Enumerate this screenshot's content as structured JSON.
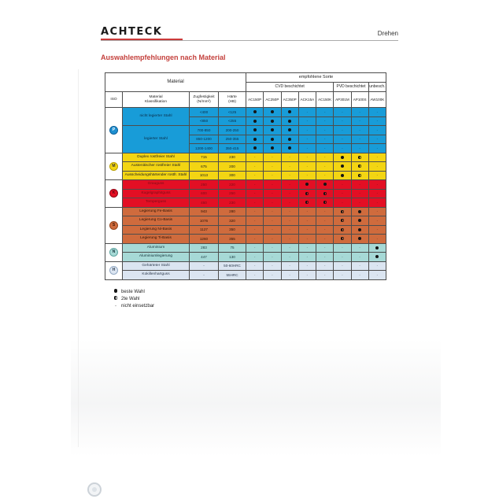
{
  "header": {
    "brand": "ACHTECK",
    "page_label": "Drehen"
  },
  "title": "Auswahlempfehlungen nach Material",
  "table": {
    "material_header": "Material",
    "recommended_header": "empfohlene Sorte",
    "coating_groups": [
      {
        "label": "CVD beschichtet",
        "span": 5
      },
      {
        "label": "PVD beschichtet",
        "span": 2
      },
      {
        "label": "unbesch.",
        "span": 1
      }
    ],
    "sub_headers": [
      "ISO",
      "Material\nKlassifikation",
      "Zugfestigkeit\n(N/mm²)",
      "Härte\n(HB)"
    ],
    "grades": [
      "AC150P",
      "AC250P",
      "AC350P",
      "ACK15A",
      "AC150K",
      "AP301M",
      "AP100S",
      "AW100K"
    ],
    "rating_symbols": {
      "b": "filled-circle-best-choice",
      "s": "half-circle-second-choice",
      "-": "dash-not-usable"
    },
    "sections": [
      {
        "iso": "P",
        "row_bg": "#189cd8",
        "row_text": "#0c2c46",
        "badge_bg": "#1e8fd0",
        "badge_border": "#0d629c",
        "badge_text": "#ffffff",
        "groups": [
          {
            "label": "nicht legierter Stahl",
            "rows": [
              {
                "tensile": "<400",
                "hardness": "<125",
                "ratings": [
                  "b",
                  "b",
                  "b",
                  "-",
                  "-",
                  "-",
                  "-",
                  "-"
                ]
              },
              {
                "tensile": "<850",
                "hardness": "<255",
                "ratings": [
                  "b",
                  "b",
                  "b",
                  "-",
                  "-",
                  "-",
                  "-",
                  "-"
                ]
              }
            ]
          },
          {
            "label": "legierter Stahl",
            "rows": [
              {
                "tensile": "700-850",
                "hardness": "200-250",
                "ratings": [
                  "b",
                  "b",
                  "b",
                  "-",
                  "-",
                  "-",
                  "-",
                  "-"
                ]
              },
              {
                "tensile": "850-1200",
                "hardness": "250-355",
                "ratings": [
                  "b",
                  "b",
                  "b",
                  "-",
                  "-",
                  "-",
                  "-",
                  "-"
                ]
              },
              {
                "tensile": "1200-1400",
                "hardness": "350-415",
                "ratings": [
                  "b",
                  "b",
                  "b",
                  "-",
                  "-",
                  "-",
                  "-",
                  "-"
                ]
              }
            ]
          }
        ]
      },
      {
        "iso": "M",
        "row_bg": "#f3d513",
        "row_text": "#1d1d1d",
        "badge_bg": "#f3d513",
        "badge_border": "#b89f00",
        "badge_text": "#333333",
        "groups": [
          {
            "label": "Duplex rostfreier Stahl",
            "rows": [
              {
                "tensile": "715",
                "hardness": "230",
                "ratings": [
                  "-",
                  "-",
                  "-",
                  "-",
                  "-",
                  "b",
                  "s",
                  "-"
                ]
              }
            ]
          },
          {
            "label": "Austenitischer rostfreier Stahl",
            "rows": [
              {
                "tensile": "675",
                "hardness": "200",
                "ratings": [
                  "-",
                  "-",
                  "-",
                  "-",
                  "-",
                  "b",
                  "s",
                  "-"
                ]
              }
            ]
          },
          {
            "label": "Ausscheidungshärtender rostfr. Stahl",
            "rows": [
              {
                "tensile": "1013",
                "hardness": "300",
                "ratings": [
                  "-",
                  "-",
                  "-",
                  "-",
                  "-",
                  "b",
                  "s",
                  "-"
                ]
              }
            ]
          }
        ]
      },
      {
        "iso": "K",
        "row_bg": "#e30f24",
        "row_text": "#7c0d18",
        "badge_bg": "#e30f24",
        "badge_border": "#8f0716",
        "badge_text": "#5c0410",
        "groups": [
          {
            "label": "Grauguss",
            "rows": [
              {
                "tensile": "250",
                "hardness": "220",
                "ratings": [
                  "-",
                  "-",
                  "-",
                  "b",
                  "b",
                  "-",
                  "-",
                  "-"
                ]
              }
            ]
          },
          {
            "label": "Kugelgraphitguss",
            "rows": [
              {
                "tensile": "600",
                "hardness": "250",
                "ratings": [
                  "-",
                  "-",
                  "-",
                  "s",
                  "s",
                  "-",
                  "-",
                  "-"
                ]
              }
            ]
          },
          {
            "label": "Temperguss",
            "rows": [
              {
                "tensile": "450",
                "hardness": "230",
                "ratings": [
                  "-",
                  "-",
                  "-",
                  "s",
                  "s",
                  "-",
                  "-",
                  "-"
                ]
              }
            ]
          }
        ]
      },
      {
        "iso": "S",
        "row_bg": "#cf6b3d",
        "row_text": "#2e1305",
        "badge_bg": "#cf6b3d",
        "badge_border": "#93451e",
        "badge_text": "#3a1505",
        "groups": [
          {
            "label": "Legierung Fe-Basis",
            "rows": [
              {
                "tensile": "943",
                "hardness": "280",
                "ratings": [
                  "-",
                  "-",
                  "-",
                  "-",
                  "-",
                  "s",
                  "b",
                  "-"
                ]
              }
            ]
          },
          {
            "label": "Legierung Co-Basis",
            "rows": [
              {
                "tensile": "1076",
                "hardness": "320",
                "ratings": [
                  "-",
                  "-",
                  "-",
                  "-",
                  "-",
                  "s",
                  "b",
                  "-"
                ]
              }
            ]
          },
          {
            "label": "Legierung Ni-Basis",
            "rows": [
              {
                "tensile": "1127",
                "hardness": "350",
                "ratings": [
                  "-",
                  "-",
                  "-",
                  "-",
                  "-",
                  "s",
                  "b",
                  "-"
                ]
              }
            ]
          },
          {
            "label": "Legierung Ti-Basis",
            "rows": [
              {
                "tensile": "1260",
                "hardness": "355",
                "ratings": [
                  "-",
                  "-",
                  "-",
                  "-",
                  "-",
                  "s",
                  "b",
                  "-"
                ]
              }
            ]
          }
        ]
      },
      {
        "iso": "N",
        "row_bg": "#a6d9d6",
        "row_text": "#13333a",
        "badge_bg": "#a6d9d6",
        "badge_border": "#5fa5a1",
        "badge_text": "#13333a",
        "groups": [
          {
            "label": "Aluminium",
            "rows": [
              {
                "tensile": "283",
                "hardness": "75",
                "ratings": [
                  "-",
                  "-",
                  "-",
                  "-",
                  "-",
                  "-",
                  "-",
                  "b"
                ]
              }
            ]
          },
          {
            "label": "Aluminiumlegierung",
            "rows": [
              {
                "tensile": "447",
                "hardness": "130",
                "ratings": [
                  "-",
                  "-",
                  "-",
                  "-",
                  "-",
                  "-",
                  "-",
                  "b"
                ]
              }
            ]
          }
        ]
      },
      {
        "iso": "H",
        "row_bg": "#dbe5f1",
        "row_text": "#2c3a4d",
        "badge_bg": "#dbe5f1",
        "badge_border": "#93a9c4",
        "badge_text": "#2c3a4d",
        "groups": [
          {
            "label": "Gehärteter Stahl",
            "rows": [
              {
                "tensile": "-",
                "hardness": "50-60HRC",
                "ratings": [
                  "-",
                  "-",
                  "-",
                  "-",
                  "-",
                  "-",
                  "-",
                  "-"
                ]
              }
            ]
          },
          {
            "label": "Kokillenhartguss",
            "rows": [
              {
                "tensile": "-",
                "hardness": "55HRC",
                "ratings": [
                  "-",
                  "-",
                  "-",
                  "-",
                  "-",
                  "-",
                  "-",
                  "-"
                ]
              }
            ]
          }
        ]
      }
    ]
  },
  "legend": [
    {
      "symbol": "filled-circle",
      "label": "beste Wahl"
    },
    {
      "symbol": "half-circle",
      "label": "2te Wahl"
    },
    {
      "symbol": "dash",
      "label": "nicht einsetzbar"
    }
  ]
}
